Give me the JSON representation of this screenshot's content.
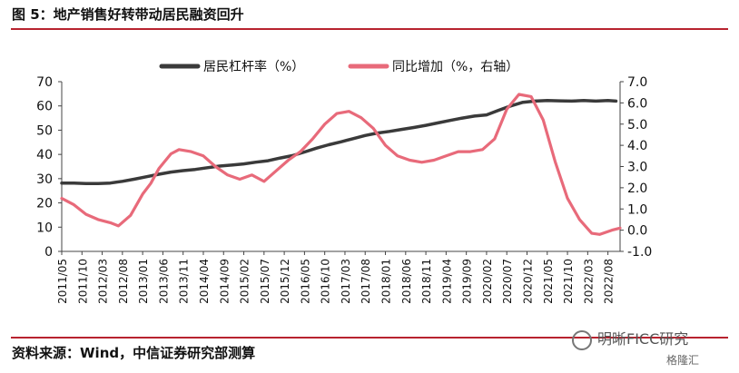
{
  "header": {
    "title": "图 5：地产销售好转带动居民融资回升"
  },
  "footer": {
    "source": "资料来源：Wind，中信证券研究部测算"
  },
  "watermark": {
    "text": "明晰FICC研究",
    "sub": "格隆汇"
  },
  "colors": {
    "accent_rule": "#b8232f",
    "series_leverage": "#3a3a3a",
    "series_growth": "#e86a7a"
  },
  "chart_data": {
    "type": "line",
    "title": "",
    "xlabel": "",
    "ylabel": "",
    "y_left_lim": [
      0,
      70
    ],
    "y_left_ticks": [
      "0",
      "10",
      "20",
      "30",
      "40",
      "50",
      "60",
      "70"
    ],
    "y_right_lim": [
      -1.0,
      7.0
    ],
    "y_right_ticks": [
      "-1.0",
      "0.0",
      "1.0",
      "2.0",
      "3.0",
      "4.0",
      "5.0",
      "6.0",
      "7.0"
    ],
    "x_tick_labels": [
      "2011/05",
      "2011/10",
      "2012/03",
      "2012/08",
      "2013/01",
      "2013/06",
      "2013/11",
      "2014/04",
      "2014/09",
      "2015/02",
      "2015/07",
      "2015/12",
      "2016/05",
      "2016/10",
      "2017/03",
      "2017/08",
      "2018/01",
      "2018/06",
      "2018/11",
      "2019/04",
      "2019/09",
      "2020/02",
      "2020/07",
      "2020/12",
      "2021/05",
      "2021/10",
      "2022/03",
      "2022/08"
    ],
    "legend": {
      "placement": "top-center"
    },
    "grid": false,
    "series": [
      {
        "name": "居民杠杆率（%）",
        "axis": "left",
        "points": [
          [
            "2011/05",
            28.2
          ],
          [
            "2011/08",
            28.2
          ],
          [
            "2011/11",
            28.0
          ],
          [
            "2012/02",
            28.0
          ],
          [
            "2012/05",
            28.2
          ],
          [
            "2012/08",
            28.9
          ],
          [
            "2012/11",
            29.8
          ],
          [
            "2013/02",
            30.8
          ],
          [
            "2013/05",
            31.8
          ],
          [
            "2013/08",
            32.7
          ],
          [
            "2013/11",
            33.3
          ],
          [
            "2014/02",
            33.8
          ],
          [
            "2014/05",
            34.5
          ],
          [
            "2014/08",
            35.2
          ],
          [
            "2014/11",
            35.6
          ],
          [
            "2015/02",
            36.1
          ],
          [
            "2015/05",
            36.8
          ],
          [
            "2015/08",
            37.4
          ],
          [
            "2015/11",
            38.5
          ],
          [
            "2016/02",
            39.5
          ],
          [
            "2016/05",
            41.0
          ],
          [
            "2016/08",
            42.6
          ],
          [
            "2016/11",
            44.0
          ],
          [
            "2017/02",
            45.2
          ],
          [
            "2017/05",
            46.5
          ],
          [
            "2017/08",
            47.8
          ],
          [
            "2017/11",
            48.8
          ],
          [
            "2018/02",
            49.5
          ],
          [
            "2018/05",
            50.3
          ],
          [
            "2018/08",
            51.1
          ],
          [
            "2018/11",
            52.0
          ],
          [
            "2019/02",
            53.0
          ],
          [
            "2019/05",
            54.0
          ],
          [
            "2019/08",
            55.0
          ],
          [
            "2019/11",
            55.8
          ],
          [
            "2020/02",
            56.3
          ],
          [
            "2020/05",
            58.2
          ],
          [
            "2020/08",
            60.0
          ],
          [
            "2020/11",
            61.5
          ],
          [
            "2021/02",
            62.0
          ],
          [
            "2021/05",
            62.2
          ],
          [
            "2021/08",
            62.1
          ],
          [
            "2021/11",
            62.0
          ],
          [
            "2022/02",
            62.2
          ],
          [
            "2022/05",
            62.0
          ],
          [
            "2022/08",
            62.2
          ],
          [
            "2022/10",
            62.0
          ]
        ]
      },
      {
        "name": "同比增加（%，右轴）",
        "axis": "right",
        "points": [
          [
            "2011/05",
            1.5
          ],
          [
            "2011/08",
            1.2
          ],
          [
            "2011/11",
            0.75
          ],
          [
            "2012/02",
            0.5
          ],
          [
            "2012/05",
            0.35
          ],
          [
            "2012/07",
            0.2
          ],
          [
            "2012/10",
            0.7
          ],
          [
            "2013/01",
            1.7
          ],
          [
            "2013/03",
            2.2
          ],
          [
            "2013/05",
            2.9
          ],
          [
            "2013/08",
            3.6
          ],
          [
            "2013/10",
            3.8
          ],
          [
            "2014/01",
            3.7
          ],
          [
            "2014/04",
            3.5
          ],
          [
            "2014/07",
            3.0
          ],
          [
            "2014/10",
            2.6
          ],
          [
            "2015/01",
            2.4
          ],
          [
            "2015/04",
            2.6
          ],
          [
            "2015/07",
            2.3
          ],
          [
            "2015/10",
            2.8
          ],
          [
            "2016/01",
            3.3
          ],
          [
            "2016/04",
            3.7
          ],
          [
            "2016/07",
            4.3
          ],
          [
            "2016/10",
            5.0
          ],
          [
            "2017/01",
            5.5
          ],
          [
            "2017/04",
            5.6
          ],
          [
            "2017/07",
            5.3
          ],
          [
            "2017/10",
            4.8
          ],
          [
            "2018/01",
            4.0
          ],
          [
            "2018/04",
            3.5
          ],
          [
            "2018/07",
            3.3
          ],
          [
            "2018/10",
            3.2
          ],
          [
            "2019/01",
            3.3
          ],
          [
            "2019/04",
            3.5
          ],
          [
            "2019/07",
            3.7
          ],
          [
            "2019/10",
            3.7
          ],
          [
            "2020/01",
            3.8
          ],
          [
            "2020/04",
            4.3
          ],
          [
            "2020/07",
            5.7
          ],
          [
            "2020/10",
            6.4
          ],
          [
            "2021/01",
            6.3
          ],
          [
            "2021/04",
            5.2
          ],
          [
            "2021/07",
            3.2
          ],
          [
            "2021/10",
            1.5
          ],
          [
            "2022/01",
            0.5
          ],
          [
            "2022/04",
            -0.15
          ],
          [
            "2022/06",
            -0.2
          ],
          [
            "2022/09",
            0.0
          ],
          [
            "2022/11",
            0.1
          ]
        ]
      }
    ]
  }
}
